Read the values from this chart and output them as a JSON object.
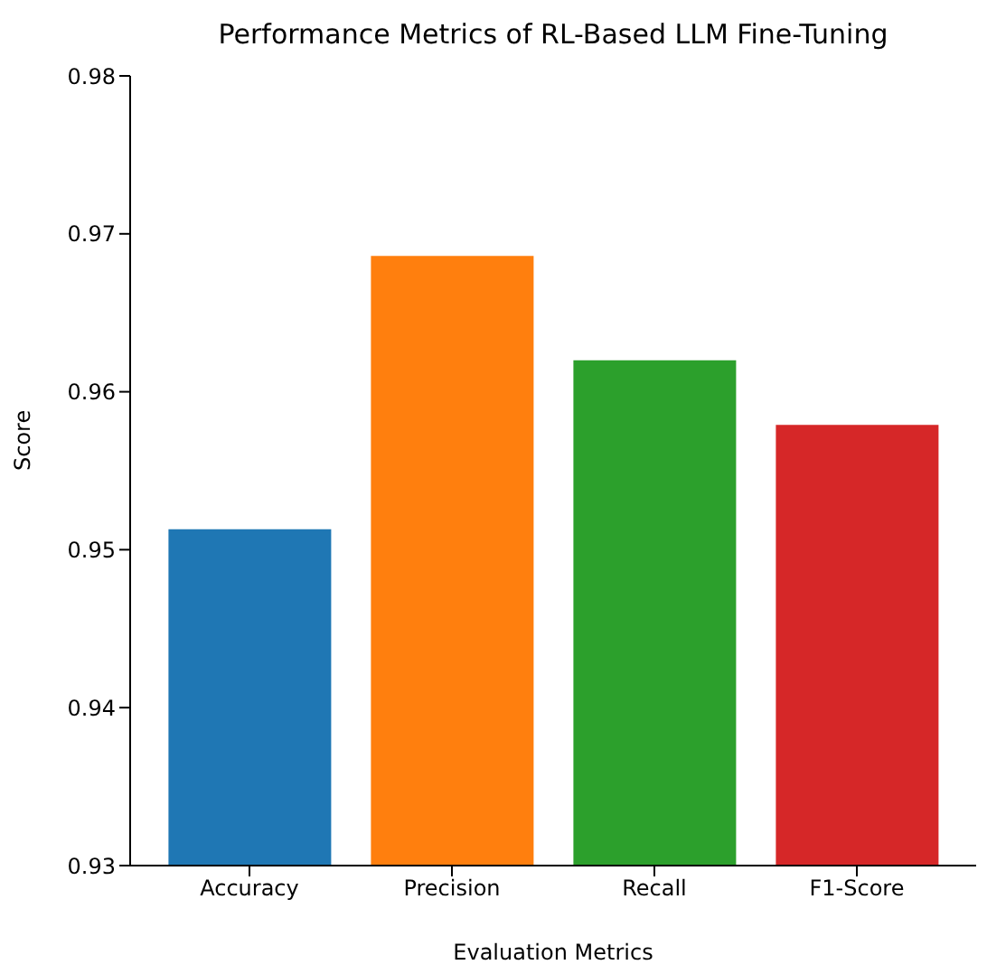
{
  "chart_data": {
    "type": "bar",
    "title": "Performance Metrics of RL-Based LLM Fine-Tuning",
    "xlabel": "Evaluation Metrics",
    "ylabel": "Score",
    "categories": [
      "Accuracy",
      "Precision",
      "Recall",
      "F1-Score"
    ],
    "values": [
      0.9513,
      0.9686,
      0.962,
      0.9579
    ],
    "colors": [
      "#1f77b4",
      "#ff7f0e",
      "#2ca02c",
      "#d62728"
    ],
    "ylim": [
      0.93,
      0.98
    ],
    "yticks": [
      0.93,
      0.94,
      0.95,
      0.96,
      0.97,
      0.98
    ],
    "grid": false,
    "legend": false
  }
}
